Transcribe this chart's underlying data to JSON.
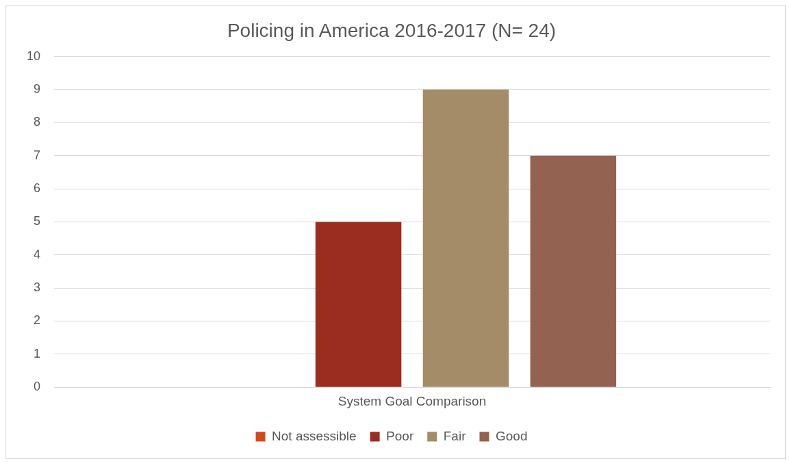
{
  "chart_data": {
    "type": "bar",
    "title": "Policing in America 2016-2017 (N= 24)",
    "categories": [
      "System Goal Comparison"
    ],
    "series": [
      {
        "name": "Not assessible",
        "color": "#d24a17",
        "values": [
          0
        ]
      },
      {
        "name": "Poor",
        "color": "#9b2d20",
        "values": [
          5
        ]
      },
      {
        "name": "Fair",
        "color": "#a58c69",
        "values": [
          9
        ]
      },
      {
        "name": "Good",
        "color": "#946250",
        "values": [
          7
        ]
      }
    ],
    "ylim": [
      0,
      10
    ],
    "yticks": [
      0,
      1,
      2,
      3,
      4,
      5,
      6,
      7,
      8,
      9,
      10
    ],
    "grid": "y",
    "legend": "bottom"
  }
}
